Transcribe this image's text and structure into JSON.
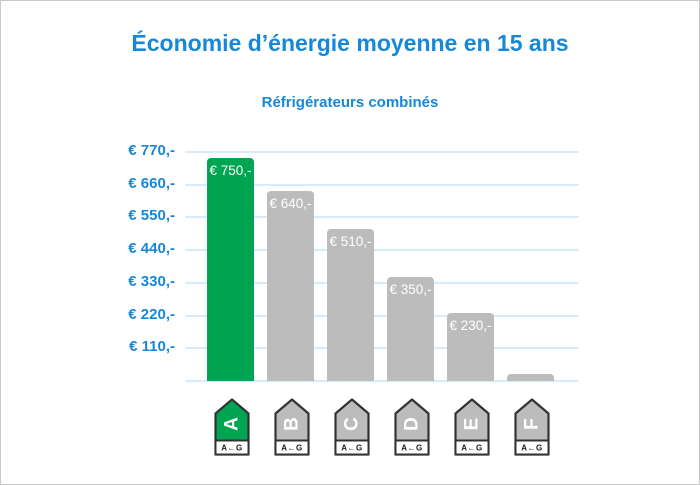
{
  "title": "Économie d’énergie moyenne en 15 ans",
  "subtitle": "Réfrigérateurs combinés",
  "colors": {
    "accent_blue": "#1787d8",
    "bar_green": "#00a551",
    "bar_gray": "#bcbcbc",
    "gridline_blue": "#d7ebfa",
    "icon_border": "#333333"
  },
  "energy_scale_text": "A←G",
  "y_axis": {
    "tick_labels": [
      "€ 770,-",
      "€ 660,-",
      "€ 550,-",
      "€ 440,-",
      "€ 330,-",
      "€ 220,-",
      "€ 110,-"
    ]
  },
  "chart_data": {
    "type": "bar",
    "title": "Économie d’énergie moyenne en 15 ans",
    "subtitle": "Réfrigérateurs combinés",
    "categories": [
      "A",
      "B",
      "C",
      "D",
      "E",
      "F"
    ],
    "values": [
      750,
      640,
      510,
      350,
      230,
      25
    ],
    "bar_labels": [
      "€ 750,-",
      "€ 640,-",
      "€ 510,-",
      "€ 350,-",
      "€ 230,-",
      ""
    ],
    "bar_colors": [
      "#00a551",
      "#bcbcbc",
      "#bcbcbc",
      "#bcbcbc",
      "#bcbcbc",
      "#bcbcbc"
    ],
    "xlabel": "",
    "ylabel": "",
    "ylim": [
      0,
      770
    ],
    "ytick_interval": 110,
    "ytick_labels": [
      "€ 770,-",
      "€ 660,-",
      "€ 550,-",
      "€ 440,-",
      "€ 330,-",
      "€ 220,-",
      "€ 110,-"
    ],
    "grid": true,
    "legend": false,
    "x_axis_icons": "EU energy-label arrows A to F, scale caption A←G"
  }
}
